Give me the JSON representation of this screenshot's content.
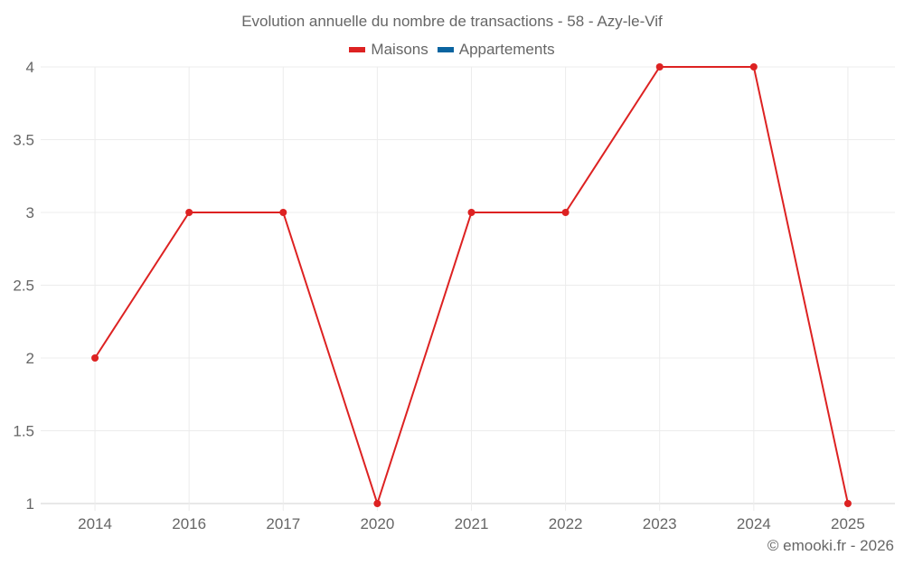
{
  "chart_data": {
    "type": "line",
    "title": "Evolution annuelle du nombre de transactions - 58 - Azy-le-Vif",
    "categories": [
      "2014",
      "2016",
      "2017",
      "2020",
      "2021",
      "2022",
      "2023",
      "2024",
      "2025"
    ],
    "series": [
      {
        "name": "Maisons",
        "color": "#dd2222",
        "values": [
          2,
          3,
          3,
          1,
          3,
          3,
          4,
          4,
          1
        ]
      },
      {
        "name": "Appartements",
        "color": "#0a64a0",
        "values": []
      }
    ],
    "xlabel": "",
    "ylabel": "",
    "ylim": [
      1,
      4
    ],
    "yticks": [
      "1",
      "1.5",
      "2",
      "2.5",
      "3",
      "3.5",
      "4"
    ],
    "grid": true,
    "legend_position": "top"
  },
  "credit": "© emooki.fr - 2026"
}
